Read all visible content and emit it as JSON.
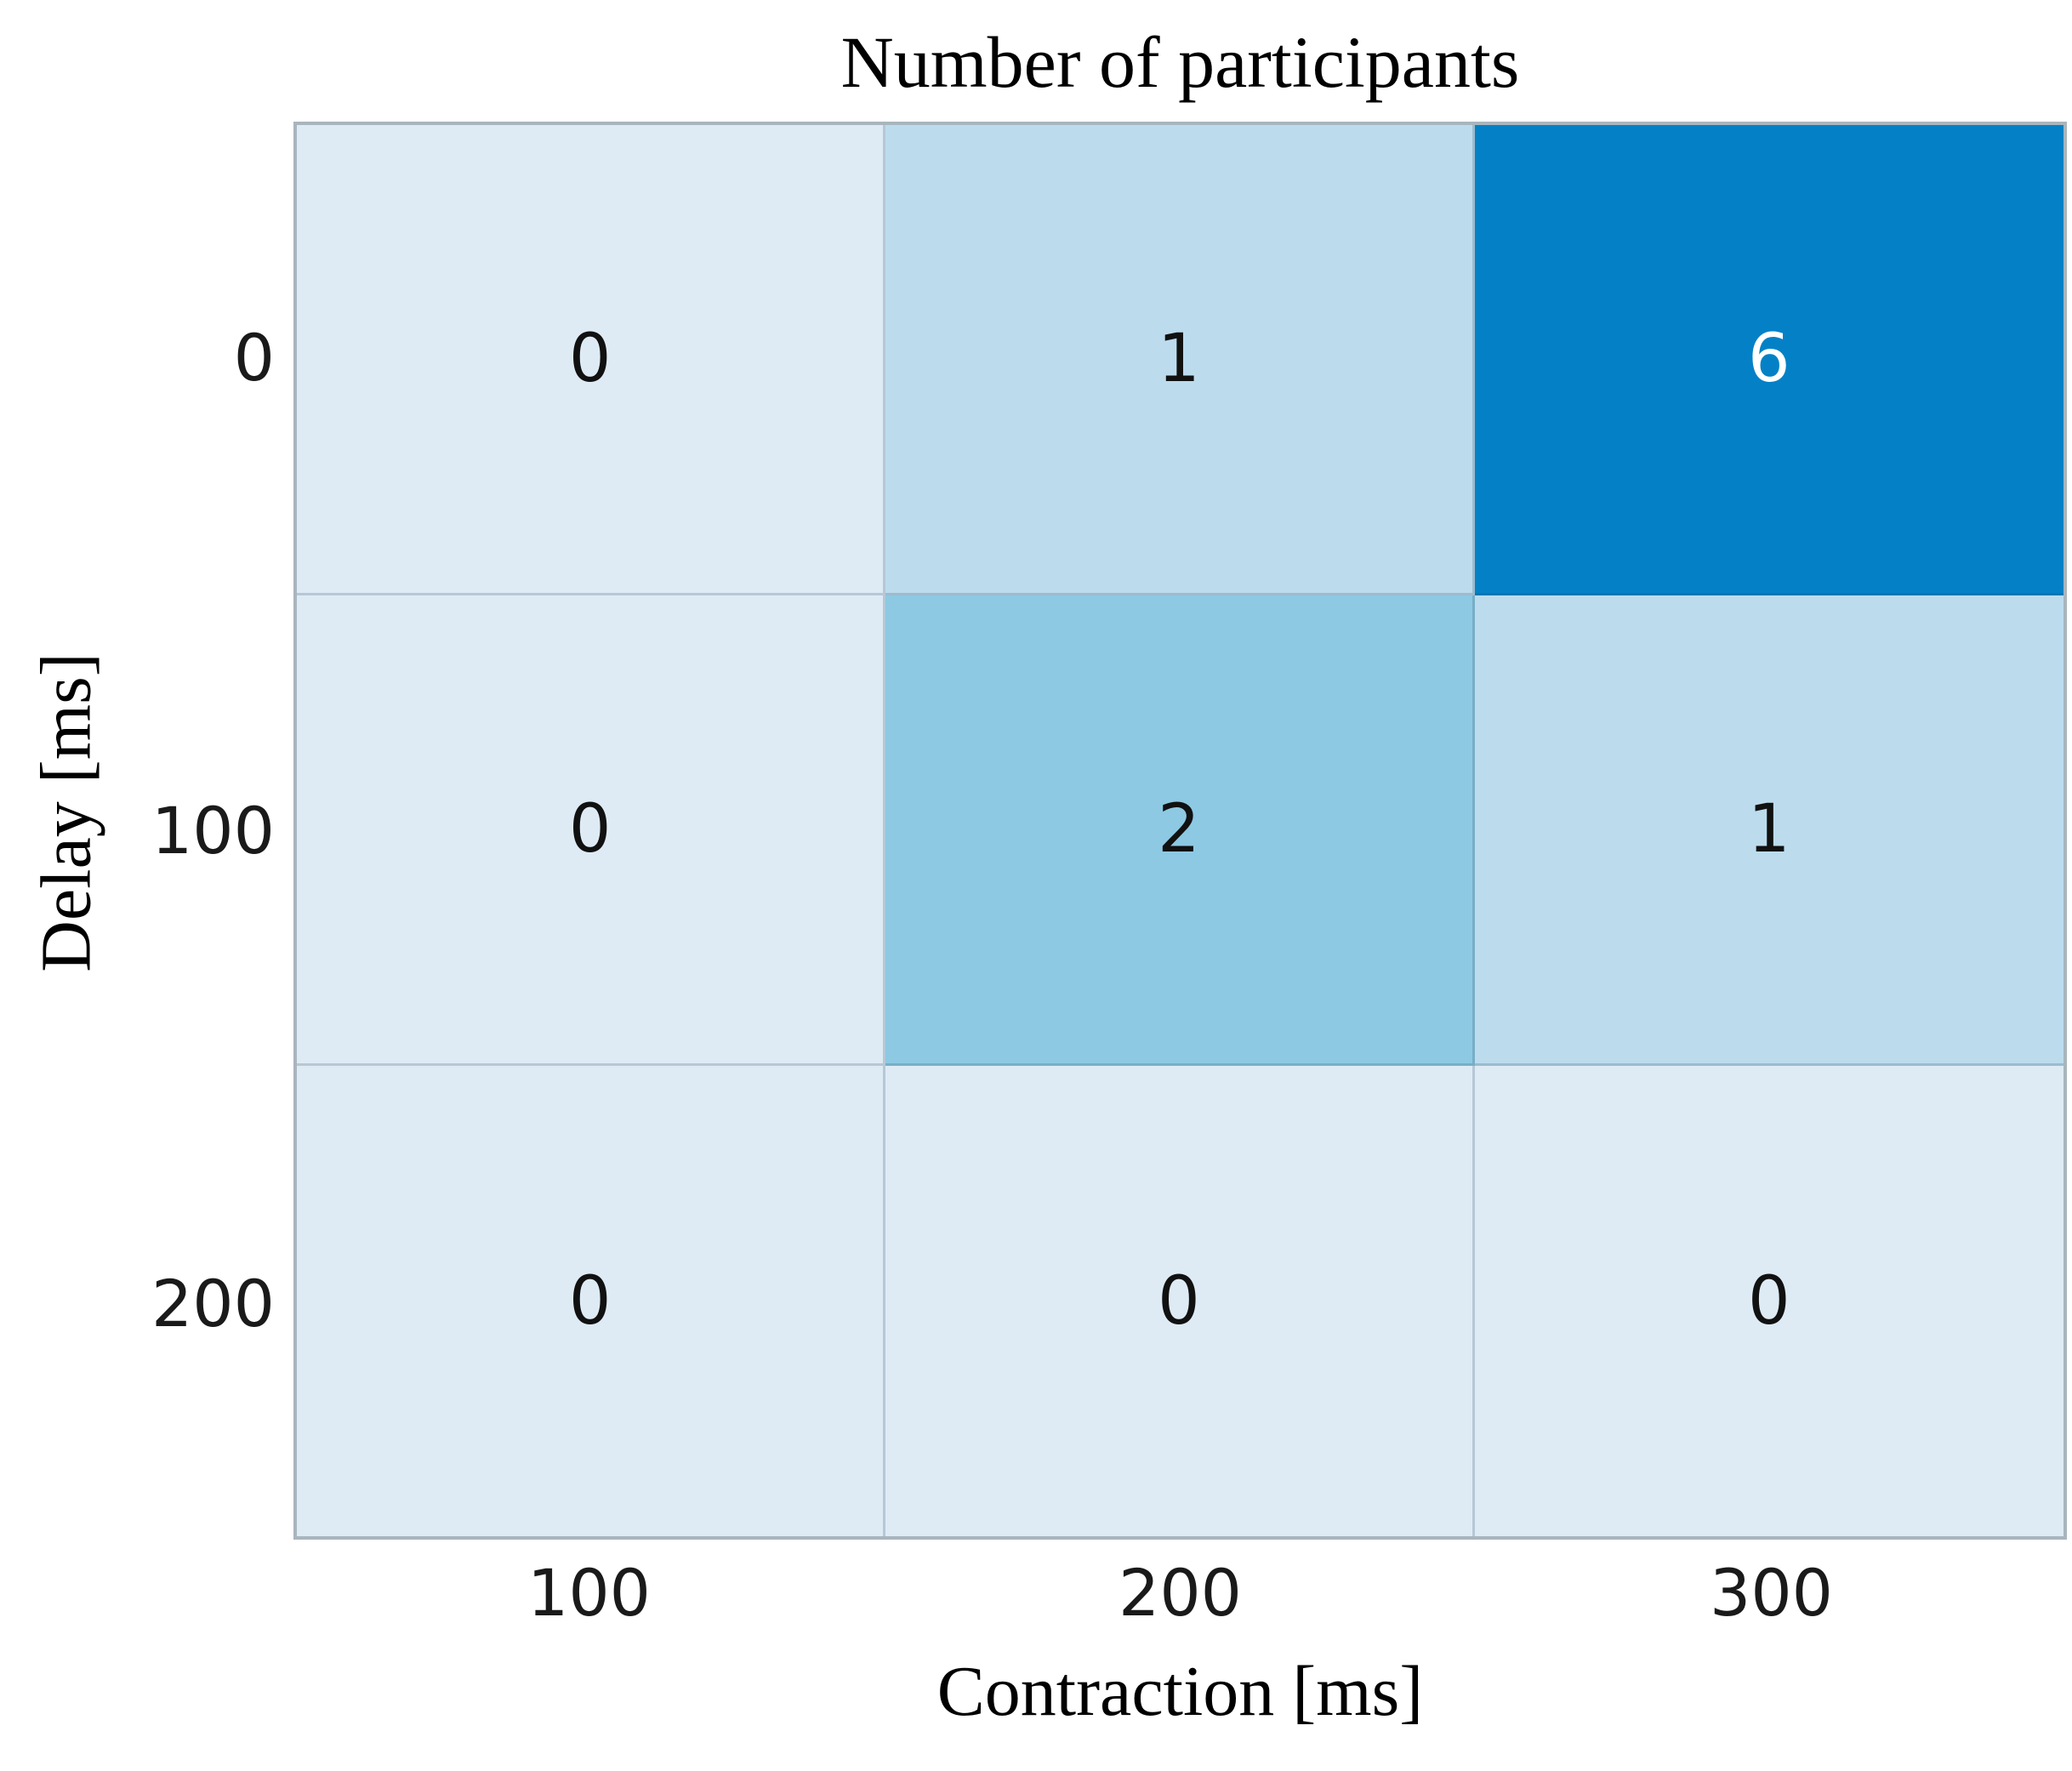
{
  "chart_data": {
    "type": "heatmap",
    "title": "Number of participants",
    "xlabel": "Contraction [ms]",
    "ylabel": "Delay [ms]",
    "x_categories": [
      "100",
      "200",
      "300"
    ],
    "y_categories": [
      "0",
      "100",
      "200"
    ],
    "matrix": [
      [
        0,
        1,
        6
      ],
      [
        0,
        2,
        1
      ],
      [
        0,
        0,
        0
      ]
    ],
    "colormap_name": "Blues",
    "colormap": {
      "0": "#deebf5",
      "1": "#bcdcee",
      "2": "#8dc9e3",
      "6": "#0481c6"
    },
    "text_colors": {
      "0": "#111111",
      "1": "#111111",
      "2": "#111111",
      "6": "#ffffff"
    },
    "border_color": "#a9b5bd",
    "grid_line_color": "rgba(45,75,100,0.22)",
    "legend": "none"
  }
}
